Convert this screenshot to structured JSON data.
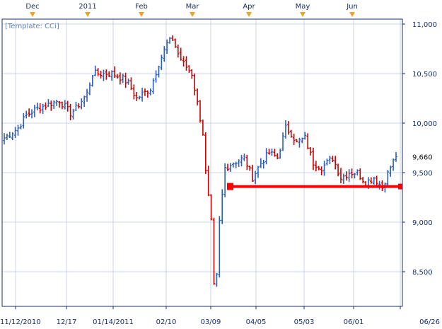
{
  "template_label": "[Template: CCi]",
  "chart_data": {
    "type": "ohlc",
    "title": "",
    "template": "[Template: CCi]",
    "ylim": [
      8150,
      11050
    ],
    "y_ticks": [
      8500,
      9000,
      9500,
      10000,
      10500,
      11000
    ],
    "y_tick_labels": [
      "8,500",
      "9,000",
      "9,500",
      "10,000",
      "10,500",
      "11,000"
    ],
    "x_date_labels": [
      "11/12/2010",
      "12/17",
      "01/14/2011",
      "02/10",
      "03/09",
      "04/05",
      "05/03",
      "06/01",
      "06/26"
    ],
    "month_markers": [
      "Dec",
      "2011",
      "Feb",
      "Mar",
      "Apr",
      "May",
      "Jun"
    ],
    "last_value": 9660,
    "last_value_label": "9,660",
    "support_level": 9360,
    "colors": {
      "up": "#2e5fb8",
      "down": "#cc0000",
      "grid": "#c9d3e6",
      "support": "#ff0000",
      "axis_text": "#1b2f6b",
      "marker": "#f2a12a"
    },
    "legend": "none",
    "grid": true,
    "series": [
      {
        "type": "ohlc",
        "key_points": [
          [
            0,
            9850
          ],
          [
            5,
            9950
          ],
          [
            8,
            10080
          ],
          [
            12,
            10150
          ],
          [
            17,
            10200
          ],
          [
            20,
            10230
          ],
          [
            24,
            10100
          ],
          [
            26,
            10150
          ],
          [
            30,
            10300
          ],
          [
            32,
            10500
          ],
          [
            35,
            10500
          ],
          [
            39,
            10500
          ],
          [
            43,
            10450
          ],
          [
            45,
            10400
          ],
          [
            48,
            10250
          ],
          [
            53,
            10350
          ],
          [
            56,
            10600
          ],
          [
            59,
            10800
          ],
          [
            61,
            10850
          ],
          [
            63,
            10700
          ],
          [
            65,
            10600
          ],
          [
            68,
            10500
          ],
          [
            70,
            10200
          ],
          [
            72,
            9900
          ],
          [
            73,
            9500
          ],
          [
            75,
            9000
          ],
          [
            76,
            8350
          ],
          [
            77,
            8450
          ],
          [
            78,
            9000
          ],
          [
            80,
            9550
          ],
          [
            83,
            9600
          ],
          [
            87,
            9650
          ],
          [
            90,
            9450
          ],
          [
            93,
            9600
          ],
          [
            96,
            9700
          ],
          [
            99,
            9650
          ],
          [
            102,
            9950
          ],
          [
            104,
            9900
          ],
          [
            106,
            9800
          ],
          [
            109,
            9850
          ],
          [
            112,
            9600
          ],
          [
            115,
            9550
          ],
          [
            119,
            9650
          ],
          [
            122,
            9450
          ],
          [
            125,
            9500
          ],
          [
            128,
            9500
          ],
          [
            131,
            9400
          ],
          [
            134,
            9450
          ],
          [
            137,
            9350
          ],
          [
            140,
            9560
          ],
          [
            142,
            9660
          ]
        ]
      }
    ]
  }
}
